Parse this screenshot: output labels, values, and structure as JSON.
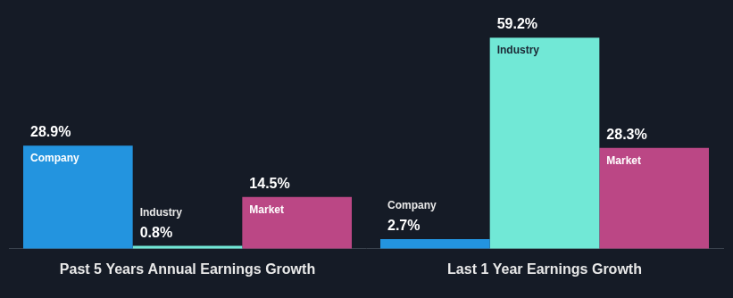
{
  "chart_data": {
    "type": "bar",
    "categories": [
      "Past 5 Years Annual Earnings Growth",
      "Last 1 Year Earnings Growth"
    ],
    "series": [
      {
        "name": "Company",
        "color": "#2394df",
        "values": [
          28.9,
          2.7
        ],
        "value_labels": [
          "28.9%",
          "2.7%"
        ]
      },
      {
        "name": "Industry",
        "color": "#71e8d6",
        "values": [
          0.8,
          59.2
        ],
        "value_labels": [
          "0.8%",
          "59.2%"
        ]
      },
      {
        "name": "Market",
        "color": "#bb4785",
        "values": [
          14.5,
          28.3
        ],
        "value_labels": [
          "14.5%",
          "28.3%"
        ]
      }
    ],
    "ylim": [
      0,
      60
    ],
    "grid": false,
    "tick_labels": "x",
    "data_labels": true
  }
}
